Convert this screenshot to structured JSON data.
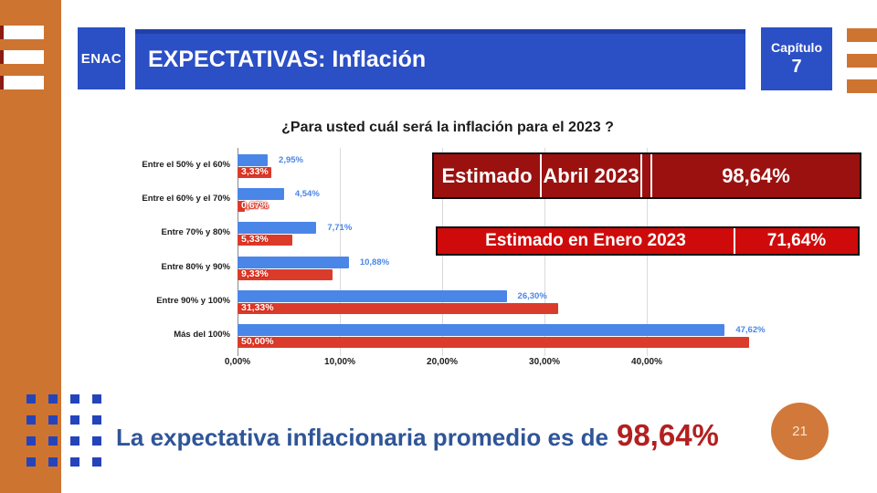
{
  "header": {
    "logo": "ENAC",
    "title": "EXPECTATIVAS: Inflación",
    "chapter_label": "Capítulo",
    "chapter_number": "7"
  },
  "chart_data": {
    "type": "bar",
    "orientation": "horizontal",
    "title": "¿Para usted cuál será la inflación para el 2023 ?",
    "categories": [
      "Entre el 50% y el 60%",
      "Entre el 60% y el 70%",
      "Entre 70% y 80%",
      "Entre 80% y 90%",
      "Entre 90% y 100%",
      "Más del 100%"
    ],
    "series": [
      {
        "name": "Estimado Abril 2023",
        "color": "#4a86e8",
        "values": [
          2.95,
          4.54,
          7.71,
          10.88,
          26.3,
          47.62
        ],
        "labels": [
          "2,95%",
          "4,54%",
          "7,71%",
          "10,88%",
          "26,30%",
          "47,62%"
        ]
      },
      {
        "name": "Estimado en Enero 2023",
        "color": "#db3b2b",
        "values": [
          3.33,
          0.67,
          5.33,
          9.33,
          31.33,
          50.0
        ],
        "labels": [
          "3,33%",
          "0,67%",
          "5,33%",
          "9,33%",
          "31,33%",
          "50,00%"
        ]
      }
    ],
    "x_tick_labels": [
      "0,00%",
      "10,00%",
      "20,00%",
      "30,00%",
      "40,00%"
    ],
    "x_tick_values": [
      0,
      10,
      20,
      30,
      40
    ],
    "xlim": [
      0,
      50
    ],
    "grid": true,
    "legend_position": "none"
  },
  "estimates": {
    "april": {
      "col1": "Estimado",
      "col2": "Abril 2023",
      "value": "98,64%",
      "bg": "#9a1110"
    },
    "january": {
      "label": "Estimado en Enero 2023",
      "value": "71,64%",
      "bg": "#cf0a0a"
    }
  },
  "footer": {
    "headline_prefix": "La expectativa inflacionaria promedio es de",
    "headline_value": "98,64%",
    "page_number": "21"
  },
  "colors": {
    "accent_orange": "#ce7431",
    "brand_blue": "#2b4fc5",
    "chart_blue": "#4a86e8",
    "chart_red": "#db3b2b",
    "estimate_april_bg": "#9a1110",
    "estimate_january_bg": "#cf0a0a",
    "headline_blue": "#2f5597",
    "headline_red": "#b32020"
  }
}
